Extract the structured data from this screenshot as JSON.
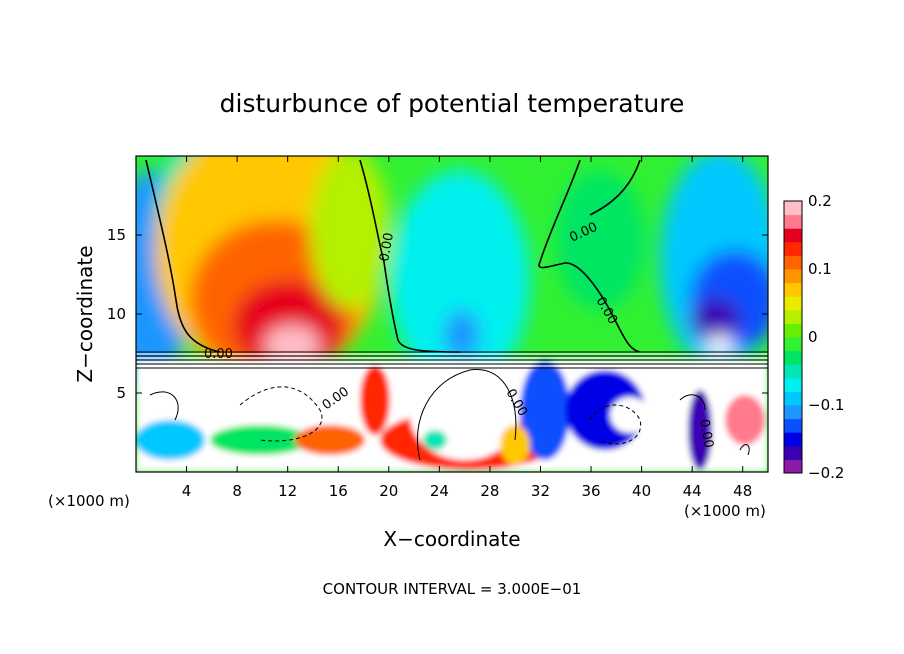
{
  "chart_data": {
    "type": "heatmap",
    "title": "disturbunce of potential temperature",
    "xlabel": "X−coordinate",
    "ylabel": "Z−coordinate",
    "x_unit_left": "(×1000 m)",
    "x_unit_right": "(×1000 m)",
    "xlim": [
      0,
      50
    ],
    "ylim": [
      0,
      20
    ],
    "x_ticks": [
      {
        "value": 4,
        "label": "4"
      },
      {
        "value": 8,
        "label": "8"
      },
      {
        "value": 12,
        "label": "12"
      },
      {
        "value": 16,
        "label": "16"
      },
      {
        "value": 20,
        "label": "20"
      },
      {
        "value": 24,
        "label": "24"
      },
      {
        "value": 28,
        "label": "28"
      },
      {
        "value": 32,
        "label": "32"
      },
      {
        "value": 36,
        "label": "36"
      },
      {
        "value": 40,
        "label": "40"
      },
      {
        "value": 44,
        "label": "44"
      },
      {
        "value": 48,
        "label": "48"
      }
    ],
    "y_ticks": [
      {
        "value": 5,
        "label": "5"
      },
      {
        "value": 10,
        "label": "10"
      },
      {
        "value": 15,
        "label": "15"
      }
    ],
    "colorbar": {
      "range": [
        -0.2,
        0.2
      ],
      "ticks": [
        {
          "value": 0.2,
          "label": "0.2"
        },
        {
          "value": 0.1,
          "label": "0.1"
        },
        {
          "value": 0,
          "label": "0"
        },
        {
          "value": -0.1,
          "label": "−0.1"
        },
        {
          "value": -0.2,
          "label": "−0.2"
        }
      ],
      "colors": [
        "#8c1aa6",
        "#3c00b4",
        "#0000e6",
        "#0a50ff",
        "#1e96ff",
        "#00c8ff",
        "#00f0f0",
        "#00e6b4",
        "#00e664",
        "#32f032",
        "#64f000",
        "#b4f000",
        "#ebeb00",
        "#ffc800",
        "#ff9600",
        "#ff6400",
        "#ff2800",
        "#e6001e",
        "#ff7a8c",
        "#ffbec8"
      ]
    },
    "contour_labels": [
      "0.00",
      "0.00",
      "0.00",
      "0.00",
      "0.00",
      "0.00",
      "0.00"
    ],
    "footer": "CONTOUR INTERVAL = 3.000E−01",
    "grid": false,
    "legend": "colorbar-right"
  }
}
